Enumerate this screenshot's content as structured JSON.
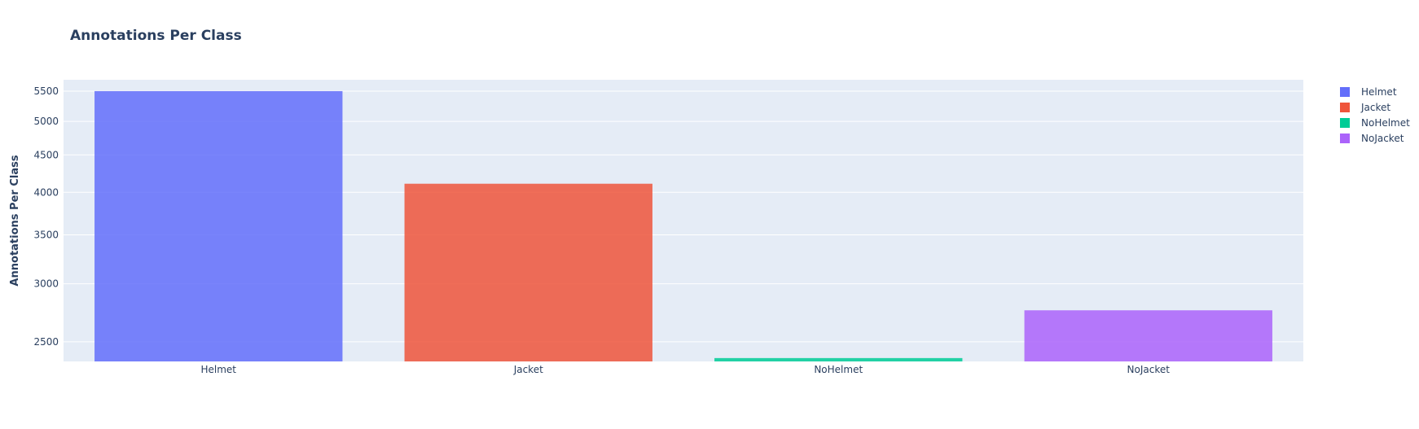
{
  "chart_data": {
    "type": "bar",
    "title": "Annotations Per Class",
    "xlabel": "",
    "ylabel": "Annotations Per Class",
    "y_scale": "log",
    "ylim": [
      2350,
      5700
    ],
    "y_ticks": [
      2500,
      3000,
      3500,
      4000,
      4500,
      5000,
      5500
    ],
    "grid": true,
    "legend_position": "top-right",
    "categories": [
      "Helmet",
      "Jacket",
      "NoHelmet",
      "NoJacket"
    ],
    "series": [
      {
        "name": "Helmet",
        "category": "Helmet",
        "value": 5500,
        "color": "#636efa"
      },
      {
        "name": "Jacket",
        "category": "Jacket",
        "value": 4110,
        "color": "#ef553b"
      },
      {
        "name": "NoHelmet",
        "category": "NoHelmet",
        "value": 2375,
        "color": "#00cc96"
      },
      {
        "name": "NoJacket",
        "category": "NoJacket",
        "value": 2760,
        "color": "#ab63fa"
      }
    ],
    "plot_background": "#e5ecf6",
    "grid_color": "#ffffff",
    "text_color": "#2a3f5f"
  }
}
